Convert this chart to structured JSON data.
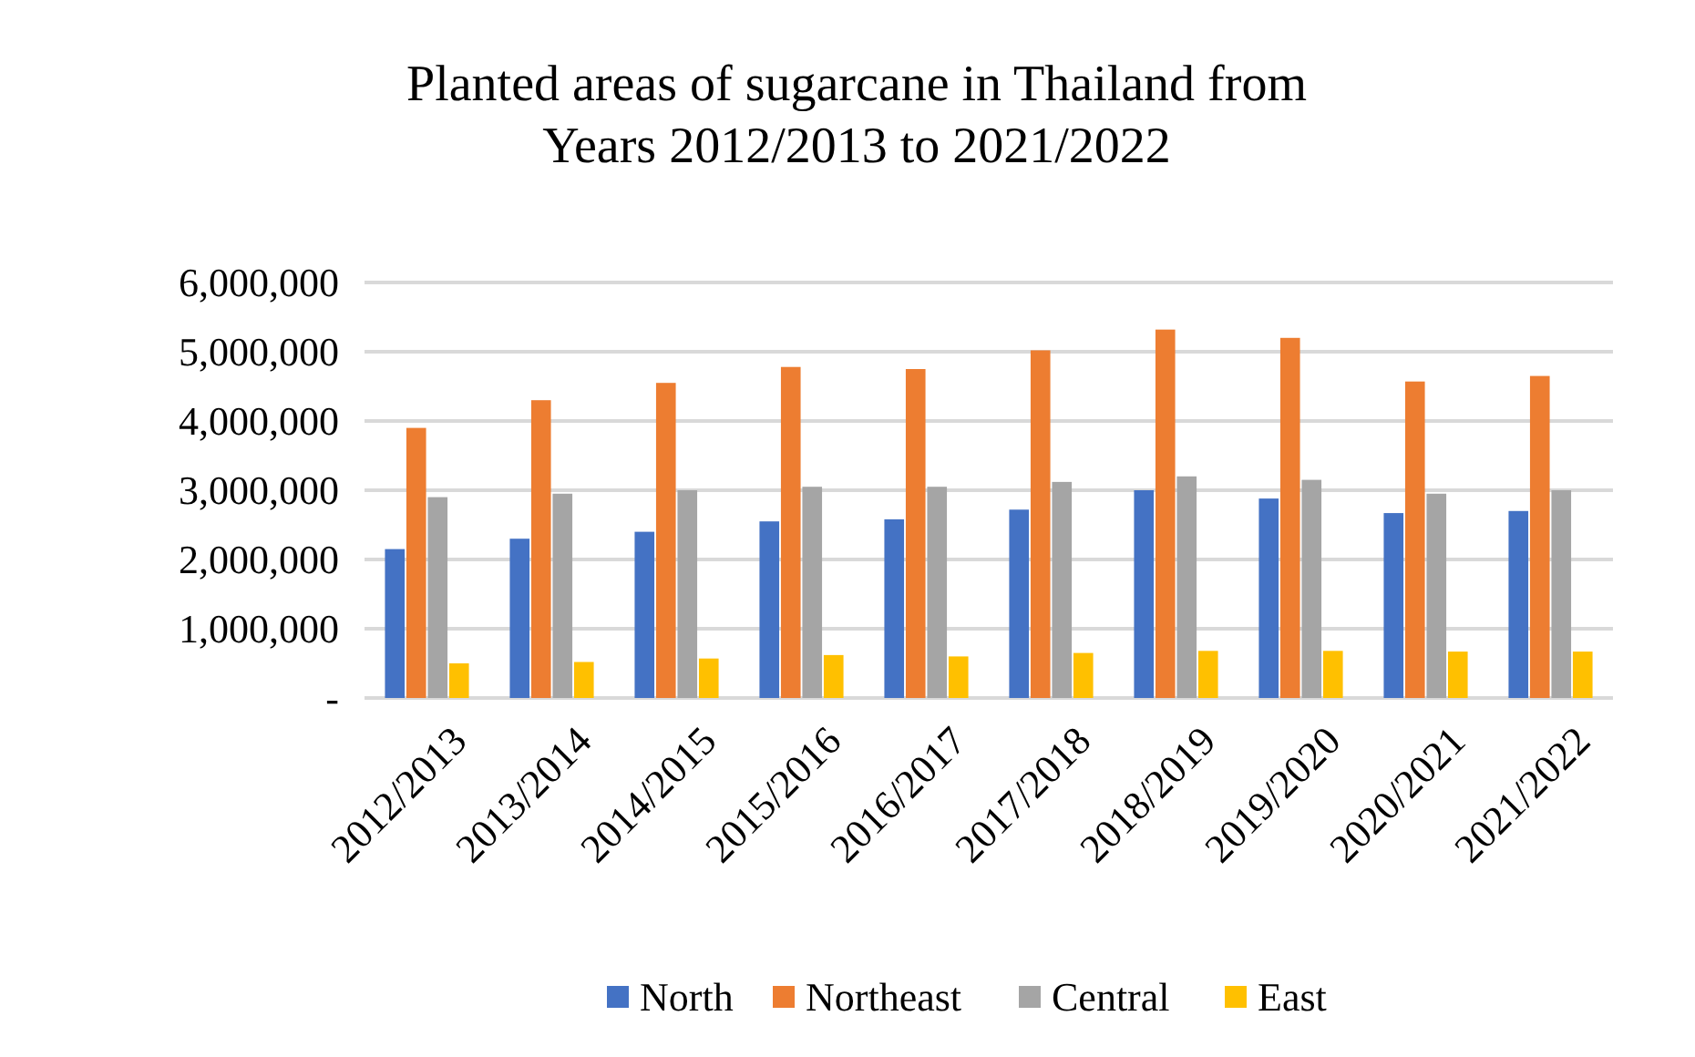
{
  "chart_data": {
    "type": "bar",
    "title": "Planted areas of sugarcane in Thailand from Years 2012/2013 to 2021/2022",
    "categories": [
      "2012/2013",
      "2013/2014",
      "2014/2015",
      "2015/2016",
      "2016/2017",
      "2017/2018",
      "2018/2019",
      "2019/2020",
      "2020/2021",
      "2021/2022"
    ],
    "series": [
      {
        "name": "North",
        "color": "#4472c4",
        "values": [
          2150000,
          2300000,
          2400000,
          2550000,
          2580000,
          2720000,
          3000000,
          2880000,
          2670000,
          2700000
        ]
      },
      {
        "name": "Northeast",
        "color": "#ed7d31",
        "values": [
          3900000,
          4300000,
          4550000,
          4780000,
          4750000,
          5020000,
          5320000,
          5200000,
          4570000,
          4650000
        ]
      },
      {
        "name": "Central",
        "color": "#a5a5a5",
        "values": [
          2900000,
          2950000,
          3000000,
          3050000,
          3050000,
          3120000,
          3200000,
          3150000,
          2950000,
          3000000
        ]
      },
      {
        "name": "East",
        "color": "#ffc000",
        "values": [
          500000,
          520000,
          570000,
          620000,
          600000,
          650000,
          680000,
          680000,
          670000,
          670000
        ]
      }
    ],
    "ylim": [
      0,
      6000000
    ],
    "yticks": [
      {
        "value": 0,
        "label": "-"
      },
      {
        "value": 1000000,
        "label": "1,000,000"
      },
      {
        "value": 2000000,
        "label": "2,000,000"
      },
      {
        "value": 3000000,
        "label": "3,000,000"
      },
      {
        "value": 4000000,
        "label": "4,000,000"
      },
      {
        "value": 5000000,
        "label": "5,000,000"
      },
      {
        "value": 6000000,
        "label": "6,000,000"
      }
    ],
    "grid": "y",
    "legend": "bottom"
  }
}
